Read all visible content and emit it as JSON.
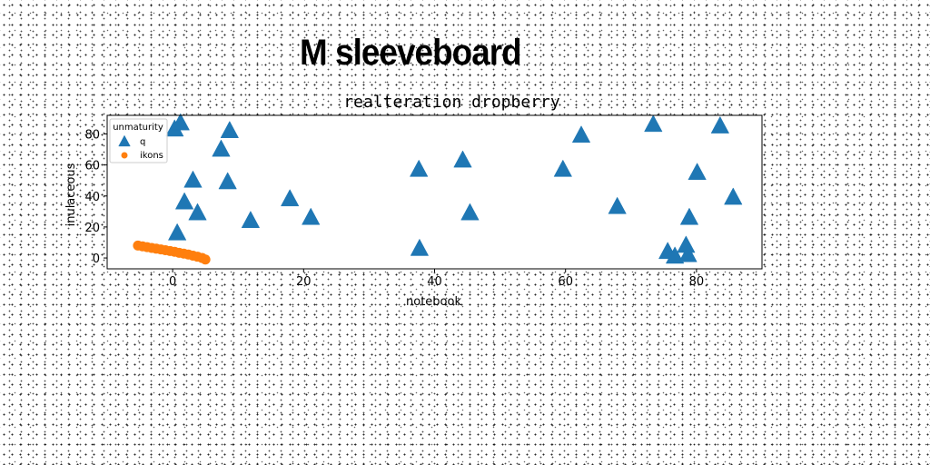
{
  "suptitle": "M sleeveboard",
  "chart_data": {
    "type": "scatter",
    "title": "realteration dropberry",
    "xlabel": "notebook",
    "ylabel": "inulaceous",
    "xlim": [
      -10,
      90
    ],
    "ylim": [
      -7,
      92
    ],
    "xticks": [
      0,
      20,
      40,
      60,
      80
    ],
    "yticks": [
      0,
      20,
      40,
      60,
      80
    ],
    "grid": false,
    "legend": {
      "title": "unmaturity",
      "position": "top-left"
    },
    "series": [
      {
        "name": "q",
        "marker": "triangle",
        "color": "#1f77b4",
        "points": [
          [
            0.3,
            83
          ],
          [
            1.2,
            87
          ],
          [
            0.7,
            16
          ],
          [
            1.8,
            36
          ],
          [
            3.1,
            50
          ],
          [
            3.8,
            29
          ],
          [
            7.4,
            70
          ],
          [
            8.7,
            82
          ],
          [
            8.4,
            49
          ],
          [
            11.9,
            24
          ],
          [
            17.9,
            38
          ],
          [
            21.1,
            26
          ],
          [
            37.6,
            57
          ],
          [
            37.7,
            6
          ],
          [
            44.3,
            63
          ],
          [
            45.4,
            29
          ],
          [
            59.6,
            57
          ],
          [
            62.4,
            79
          ],
          [
            67.9,
            33
          ],
          [
            73.4,
            86
          ],
          [
            75.6,
            4
          ],
          [
            76.7,
            1
          ],
          [
            78.4,
            8
          ],
          [
            78.7,
            2
          ],
          [
            78.9,
            26
          ],
          [
            80.1,
            55
          ],
          [
            83.6,
            85
          ],
          [
            85.6,
            39
          ]
        ]
      },
      {
        "name": "ikons",
        "marker": "circle",
        "color": "#ff7f0e",
        "points": [
          [
            -5.3,
            8
          ],
          [
            -4.6,
            7.5
          ],
          [
            -3.9,
            7
          ],
          [
            -3.2,
            6.5
          ],
          [
            -2.5,
            6
          ],
          [
            -1.8,
            5.5
          ],
          [
            -1.1,
            5
          ],
          [
            -0.4,
            4.5
          ],
          [
            0.3,
            4
          ],
          [
            1.0,
            3.3
          ],
          [
            1.7,
            2.8
          ],
          [
            2.4,
            2.2
          ],
          [
            3.1,
            1.5
          ],
          [
            3.8,
            0.8
          ],
          [
            4.5,
            0
          ],
          [
            5.0,
            -1
          ]
        ]
      }
    ]
  }
}
